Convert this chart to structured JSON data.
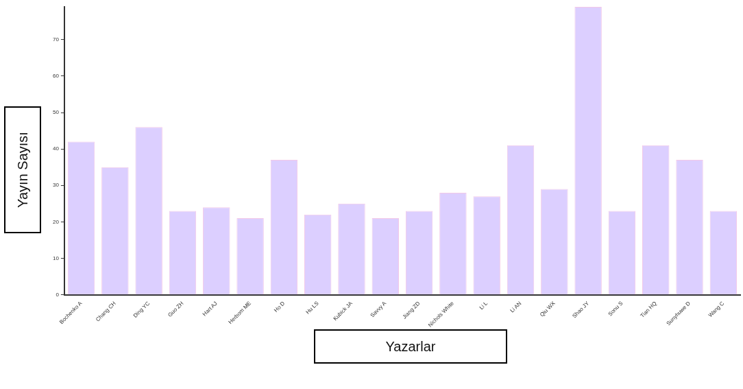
{
  "chart_data": {
    "type": "bar",
    "xlabel": "Yazarlar",
    "ylabel": "Yayın Sayısı",
    "categories": [
      "Bochenko A",
      "Chang CH",
      "Ding YC",
      "Guo ZH",
      "Hart AJ",
      "Herbom ME",
      "Ho D",
      "Hu LS",
      "Kubick JA",
      "Savvy A",
      "Jiang ZD",
      "Nichols White",
      "Li L",
      "Li AN",
      "Qiu WX",
      "Shao JY",
      "Sonu S",
      "Tian HQ",
      "Sunyhuwe D",
      "Wang C"
    ],
    "values": [
      42,
      35,
      46,
      23,
      24,
      21,
      37,
      22,
      25,
      21,
      23,
      28,
      27,
      41,
      29,
      79,
      23,
      41,
      37,
      23
    ],
    "color": "#dccfff",
    "ylim": [
      0,
      79
    ],
    "yticks": [
      0,
      10,
      20,
      30,
      40,
      50,
      60,
      70
    ],
    "grid": false,
    "legend": false
  }
}
